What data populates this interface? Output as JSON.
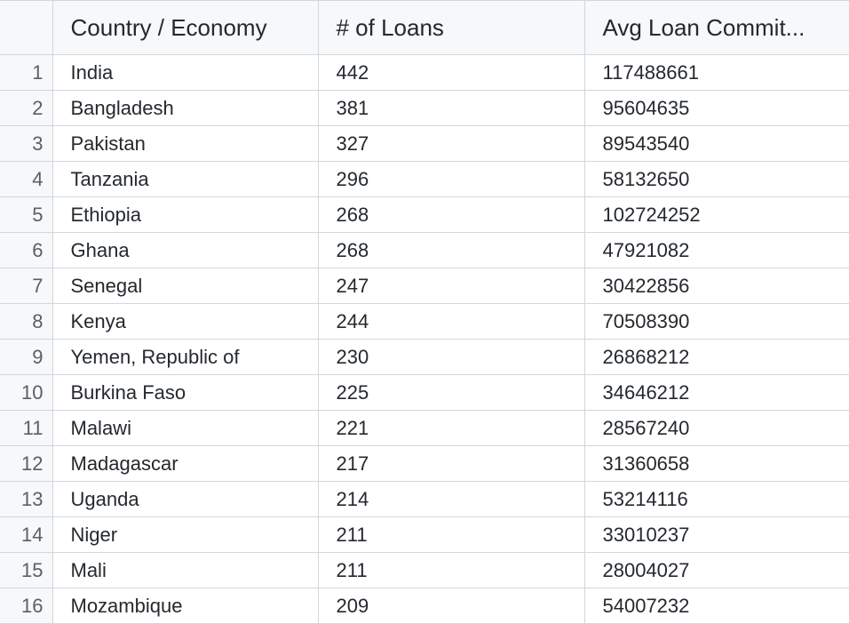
{
  "table": {
    "columns": [
      "",
      "Country / Economy",
      "# of Loans",
      "Avg Loan Commit..."
    ],
    "rows": [
      {
        "index": "1",
        "country": "India",
        "loans": "442",
        "avg": "117488661"
      },
      {
        "index": "2",
        "country": "Bangladesh",
        "loans": "381",
        "avg": "95604635"
      },
      {
        "index": "3",
        "country": "Pakistan",
        "loans": "327",
        "avg": "89543540"
      },
      {
        "index": "4",
        "country": "Tanzania",
        "loans": "296",
        "avg": "58132650"
      },
      {
        "index": "5",
        "country": "Ethiopia",
        "loans": "268",
        "avg": "102724252"
      },
      {
        "index": "6",
        "country": "Ghana",
        "loans": "268",
        "avg": "47921082"
      },
      {
        "index": "7",
        "country": "Senegal",
        "loans": "247",
        "avg": "30422856"
      },
      {
        "index": "8",
        "country": "Kenya",
        "loans": "244",
        "avg": "70508390"
      },
      {
        "index": "9",
        "country": "Yemen, Republic of",
        "loans": "230",
        "avg": "26868212"
      },
      {
        "index": "10",
        "country": "Burkina Faso",
        "loans": "225",
        "avg": "34646212"
      },
      {
        "index": "11",
        "country": "Malawi",
        "loans": "221",
        "avg": "28567240"
      },
      {
        "index": "12",
        "country": "Madagascar",
        "loans": "217",
        "avg": "31360658"
      },
      {
        "index": "13",
        "country": "Uganda",
        "loans": "214",
        "avg": "53214116"
      },
      {
        "index": "14",
        "country": "Niger",
        "loans": "211",
        "avg": "33010237"
      },
      {
        "index": "15",
        "country": "Mali",
        "loans": "211",
        "avg": "28004027"
      },
      {
        "index": "16",
        "country": "Mozambique",
        "loans": "209",
        "avg": "54007232"
      }
    ]
  }
}
